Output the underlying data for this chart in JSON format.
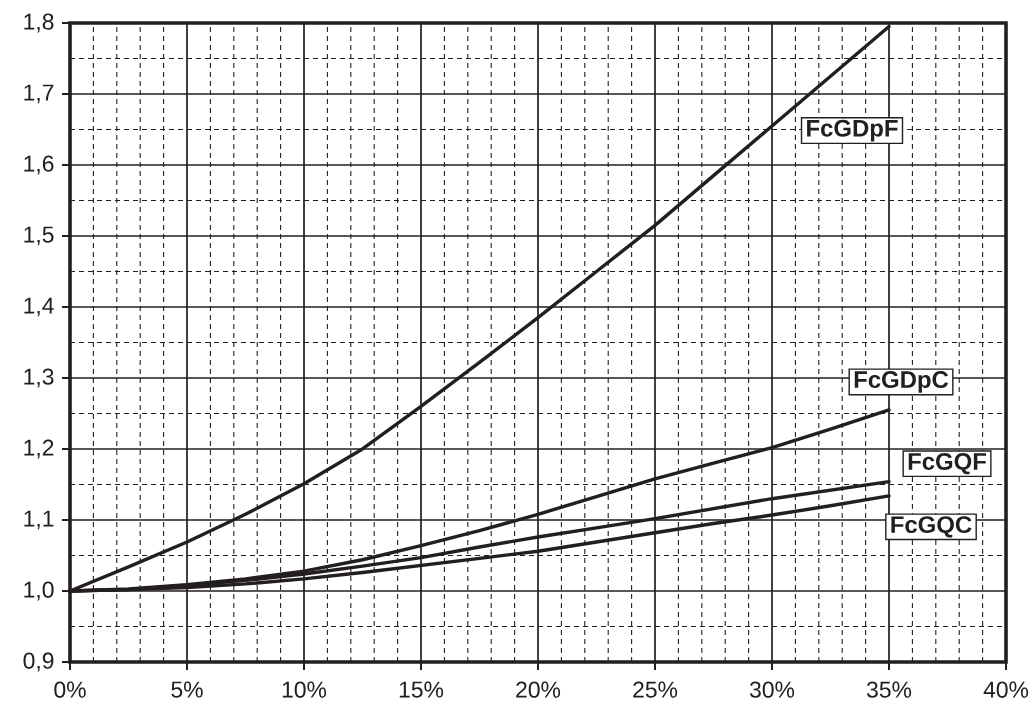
{
  "chart_data": {
    "type": "line",
    "x": [
      0,
      2.5,
      5,
      7.5,
      10,
      12.5,
      15,
      17.5,
      20,
      22.5,
      25,
      27.5,
      30,
      32.5,
      35
    ],
    "series": [
      {
        "name": "FcGDpF",
        "color": "#231f20",
        "values": [
          1.0,
          1.034,
          1.069,
          1.108,
          1.151,
          1.2,
          1.26,
          1.322,
          1.385,
          1.45,
          1.515,
          1.585,
          1.655,
          1.725,
          1.795
        ]
      },
      {
        "name": "FcGDpC",
        "color": "#231f20",
        "values": [
          1.0,
          1.003,
          1.009,
          1.017,
          1.028,
          1.044,
          1.064,
          1.085,
          1.108,
          1.133,
          1.158,
          1.18,
          1.202,
          1.228,
          1.255
        ]
      },
      {
        "name": "FcGQF",
        "color": "#231f20",
        "values": [
          1.0,
          1.002,
          1.008,
          1.015,
          1.024,
          1.035,
          1.047,
          1.062,
          1.076,
          1.089,
          1.102,
          1.116,
          1.13,
          1.142,
          1.154
        ]
      },
      {
        "name": "FcGQC",
        "color": "#231f20",
        "values": [
          1.0,
          1.002,
          1.005,
          1.01,
          1.017,
          1.026,
          1.036,
          1.046,
          1.056,
          1.069,
          1.082,
          1.095,
          1.107,
          1.12,
          1.134
        ]
      }
    ],
    "xlim": [
      0,
      40
    ],
    "xticks": [
      {
        "value": 0,
        "label": "0%"
      },
      {
        "value": 5,
        "label": "5%"
      },
      {
        "value": 10,
        "label": "10%"
      },
      {
        "value": 15,
        "label": "15%"
      },
      {
        "value": 20,
        "label": "20%"
      },
      {
        "value": 25,
        "label": "25%"
      },
      {
        "value": 30,
        "label": "30%"
      },
      {
        "value": 35,
        "label": "35%"
      },
      {
        "value": 40,
        "label": "40%"
      }
    ],
    "ylim": [
      0.9,
      1.8
    ],
    "yticks": [
      {
        "value": 0.9,
        "label": "0,9"
      },
      {
        "value": 1.0,
        "label": "1,0"
      },
      {
        "value": 1.1,
        "label": "1,1"
      },
      {
        "value": 1.2,
        "label": "1,2"
      },
      {
        "value": 1.3,
        "label": "1,3"
      },
      {
        "value": 1.4,
        "label": "1,4"
      },
      {
        "value": 1.5,
        "label": "1,5"
      },
      {
        "value": 1.6,
        "label": "1,6"
      },
      {
        "value": 1.7,
        "label": "1,7"
      },
      {
        "value": 1.8,
        "label": "1,8"
      }
    ],
    "grid": true,
    "line_style": "solid"
  }
}
